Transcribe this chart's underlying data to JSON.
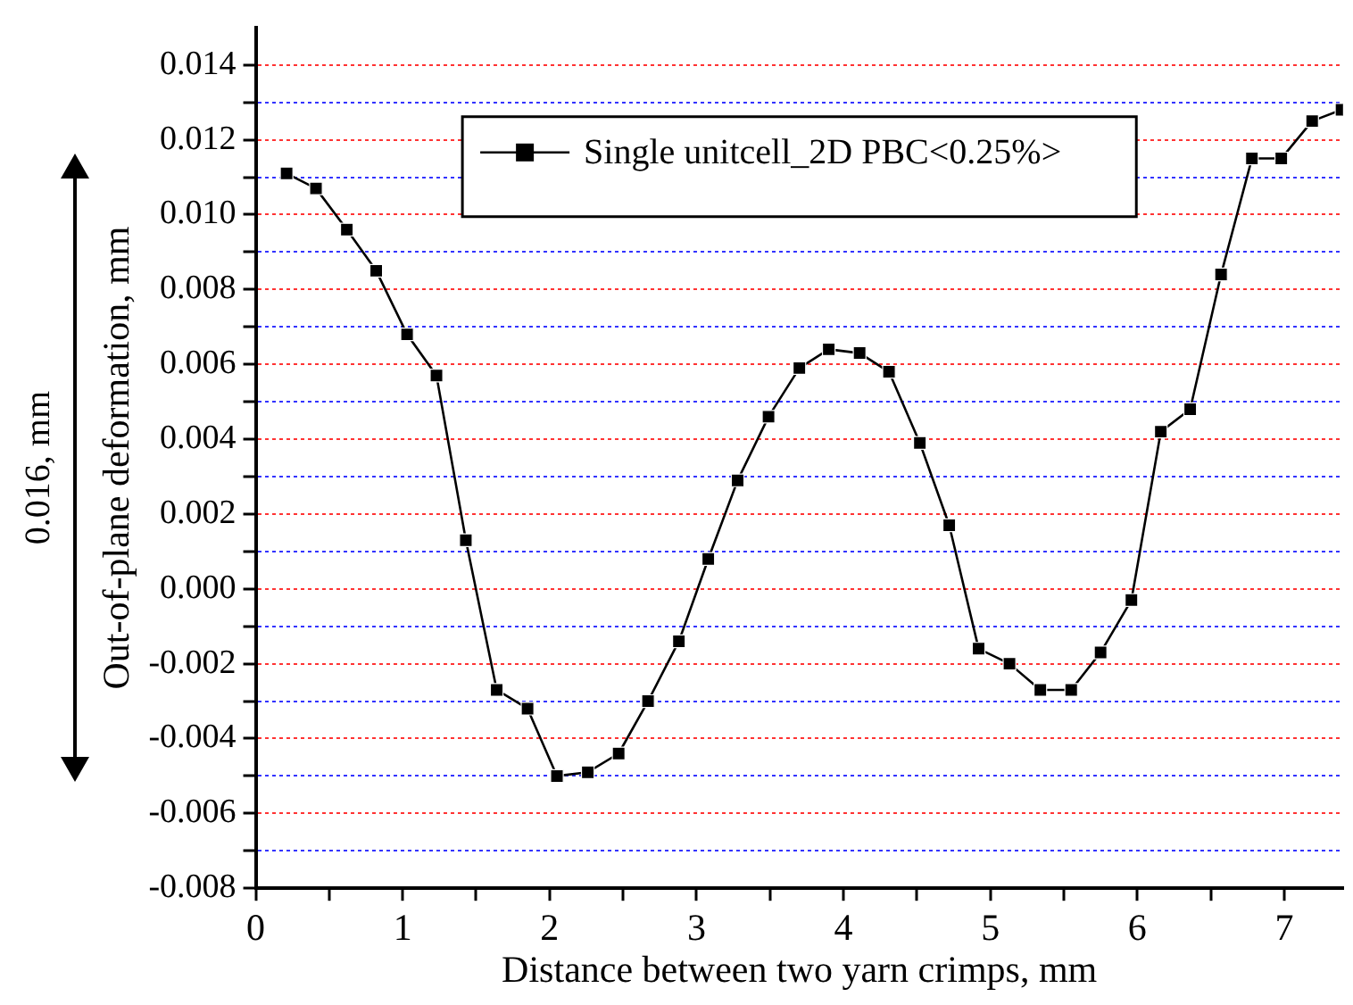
{
  "chart_data": {
    "type": "line",
    "xlabel": "Distance between two yarn crimps, mm",
    "ylabel": "Out-of-plane deformation, mm",
    "annotations": [
      "0.016, mm"
    ],
    "x": [
      0.21,
      0.41,
      0.62,
      0.82,
      1.03,
      1.23,
      1.43,
      1.64,
      1.85,
      2.05,
      2.26,
      2.47,
      2.67,
      2.88,
      3.08,
      3.28,
      3.49,
      3.7,
      3.9,
      4.11,
      4.31,
      4.52,
      4.72,
      4.92,
      5.13,
      5.34,
      5.55,
      5.75,
      5.96,
      6.16,
      6.36,
      6.57,
      6.78,
      6.98,
      7.19,
      7.39
    ],
    "series": [
      {
        "name": "Single unitcell_2D PBC<0.25%>",
        "color": "#000000",
        "values": [
          0.0111,
          0.0107,
          0.0096,
          0.0085,
          0.0068,
          0.0057,
          0.0013,
          -0.0027,
          -0.0032,
          -0.005,
          -0.0049,
          -0.0044,
          -0.003,
          -0.0014,
          0.0008,
          0.0029,
          0.0046,
          0.0059,
          0.0064,
          0.0063,
          0.0058,
          0.0039,
          0.0017,
          -0.0016,
          -0.002,
          -0.0027,
          -0.0027,
          -0.0017,
          -0.0003,
          0.0042,
          0.0048,
          0.0084,
          0.0115,
          0.0115,
          0.0125,
          0.0128
        ]
      }
    ],
    "xlim": [
      0,
      7.4
    ],
    "xticks": [
      0,
      {
        "value": 0.5,
        "label": null
      },
      1,
      {
        "value": 1.5,
        "label": null
      },
      2,
      {
        "value": 2.5,
        "label": null
      },
      3,
      {
        "value": 3.5,
        "label": null
      },
      4,
      {
        "value": 4.5,
        "label": null
      },
      5,
      {
        "value": 5.5,
        "label": null
      },
      6,
      {
        "value": 6.5,
        "label": null
      },
      7
    ],
    "ylim": [
      -0.008,
      0.015
    ],
    "yticks": [
      {
        "value": -0.008,
        "label": "-0.008"
      },
      {
        "value": -0.007,
        "label": null
      },
      {
        "value": -0.006,
        "label": "-0.006"
      },
      {
        "value": -0.005,
        "label": null
      },
      {
        "value": -0.004,
        "label": "-0.004"
      },
      {
        "value": -0.003,
        "label": null
      },
      {
        "value": -0.002,
        "label": "-0.002"
      },
      {
        "value": -0.001,
        "label": null
      },
      {
        "value": 0,
        "label": "0.000"
      },
      {
        "value": 0.001,
        "label": null
      },
      {
        "value": 0.002,
        "label": "0.002"
      },
      {
        "value": 0.003,
        "label": null
      },
      {
        "value": 0.004,
        "label": "0.004"
      },
      {
        "value": 0.005,
        "label": null
      },
      {
        "value": 0.006,
        "label": "0.006"
      },
      {
        "value": 0.007,
        "label": null
      },
      {
        "value": 0.008,
        "label": "0.008"
      },
      {
        "value": 0.009,
        "label": null
      },
      {
        "value": 0.01,
        "label": "0.010"
      },
      {
        "value": 0.011,
        "label": null
      },
      {
        "value": 0.012,
        "label": "0.012"
      },
      {
        "value": 0.013,
        "label": null
      },
      {
        "value": 0.014,
        "label": "0.014"
      }
    ],
    "grid": "y",
    "legend": "top",
    "marker": "square",
    "line_style": "solid"
  }
}
